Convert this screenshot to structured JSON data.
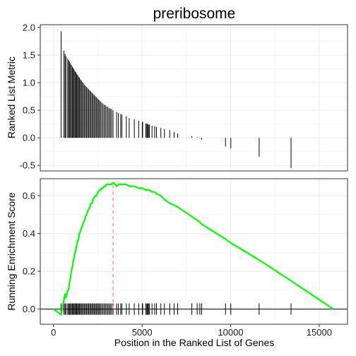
{
  "chart_data": {
    "type": "line",
    "title": "preribosome",
    "colors": {
      "running_score": "#00ff00",
      "peak_marker": "#ff6666",
      "hits": "#000000"
    },
    "top_panel": {
      "type": "bar",
      "ylabel": "Ranked List Metric",
      "yticks": [
        "2.0",
        "1.5",
        "1.0",
        "0.5",
        "0.0",
        "-0.5"
      ],
      "ylim": [
        -0.6,
        2.05
      ],
      "xlim": [
        -750,
        16600
      ],
      "grid": true,
      "hit_positions": [
        430,
        590,
        650,
        700,
        800,
        850,
        900,
        960,
        1000,
        1060,
        1110,
        1160,
        1210,
        1260,
        1310,
        1360,
        1410,
        1460,
        1520,
        1570,
        1630,
        1690,
        1750,
        1810,
        1870,
        1930,
        1990,
        2050,
        2110,
        2170,
        2230,
        2290,
        2350,
        2410,
        2470,
        2530,
        2590,
        2650,
        2720,
        2790,
        2860,
        2930,
        3000,
        3070,
        3140,
        3210,
        3280,
        3360,
        3560,
        3660,
        3790,
        3860,
        4110,
        4270,
        4560,
        4810,
        5010,
        5030,
        5210,
        5270,
        5310,
        5360,
        5410,
        5560,
        5710,
        5810,
        6060,
        6260,
        6560,
        6810,
        7010,
        7810,
        8110,
        8260,
        8360,
        9710,
        10010,
        11610,
        13410
      ],
      "metric_values": [
        1.93,
        1.58,
        1.52,
        1.48,
        1.44,
        1.41,
        1.38,
        1.35,
        1.32,
        1.29,
        1.27,
        1.24,
        1.21,
        1.19,
        1.16,
        1.14,
        1.11,
        1.09,
        1.06,
        1.04,
        1.01,
        0.99,
        0.96,
        0.94,
        0.92,
        0.9,
        0.88,
        0.86,
        0.84,
        0.82,
        0.8,
        0.78,
        0.76,
        0.74,
        0.72,
        0.7,
        0.68,
        0.66,
        0.64,
        0.62,
        0.6,
        0.59,
        0.57,
        0.56,
        0.54,
        0.53,
        0.52,
        0.5,
        0.47,
        0.45,
        0.43,
        0.42,
        0.39,
        0.36,
        0.34,
        0.31,
        0.29,
        0.29,
        0.26,
        0.26,
        0.25,
        0.24,
        0.24,
        0.22,
        0.21,
        0.2,
        0.18,
        0.16,
        0.14,
        0.11,
        0.08,
        0.03,
        0.01,
        -0.01,
        -0.03,
        -0.16,
        -0.19,
        -0.34,
        -0.55
      ]
    },
    "bottom_panel": {
      "type": "line",
      "xlabel": "Position in the Ranked List of Genes",
      "ylabel": "Running Enrichment Score",
      "xticks": [
        "0",
        "5000",
        "10000",
        "15000"
      ],
      "xtick_values": [
        0,
        5000,
        10000,
        15000
      ],
      "yticks": [
        "0.6",
        "0.4",
        "0.2",
        "0.0"
      ],
      "ytick_values": [
        0.6,
        0.4,
        0.2,
        0.0
      ],
      "xlim": [
        -750,
        16600
      ],
      "ylim": [
        -0.08,
        0.69
      ],
      "grid": true,
      "max_es_position": 3360,
      "running_score": {
        "x": [
          0,
          430,
          590,
          650,
          700,
          800,
          850,
          900,
          960,
          1000,
          1060,
          1110,
          1160,
          1210,
          1260,
          1310,
          1360,
          1410,
          1460,
          1520,
          1570,
          1630,
          1690,
          1750,
          1810,
          1870,
          1930,
          1990,
          2050,
          2110,
          2170,
          2230,
          2290,
          2350,
          2410,
          2470,
          2530,
          2590,
          2650,
          2720,
          2790,
          2860,
          2930,
          3000,
          3070,
          3140,
          3210,
          3280,
          3360,
          3560,
          3660,
          3790,
          3860,
          4110,
          4270,
          4560,
          4810,
          5010,
          5030,
          5210,
          5270,
          5310,
          5360,
          5410,
          5560,
          5710,
          5810,
          6060,
          6260,
          6560,
          6810,
          7010,
          7810,
          8110,
          8260,
          8360,
          9710,
          10010,
          11610,
          13410,
          15800
        ],
        "y": [
          0.0,
          -0.03,
          0.05,
          0.08,
          0.06,
          0.1,
          0.1,
          0.14,
          0.17,
          0.2,
          0.22,
          0.25,
          0.27,
          0.3,
          0.31,
          0.34,
          0.36,
          0.37,
          0.4,
          0.41,
          0.43,
          0.44,
          0.46,
          0.47,
          0.49,
          0.5,
          0.52,
          0.53,
          0.54,
          0.56,
          0.56,
          0.58,
          0.59,
          0.6,
          0.6,
          0.61,
          0.62,
          0.63,
          0.63,
          0.64,
          0.64,
          0.65,
          0.65,
          0.66,
          0.66,
          0.66,
          0.66,
          0.66,
          0.67,
          0.65,
          0.66,
          0.66,
          0.66,
          0.66,
          0.65,
          0.65,
          0.64,
          0.64,
          0.64,
          0.63,
          0.63,
          0.63,
          0.63,
          0.63,
          0.62,
          0.62,
          0.61,
          0.6,
          0.58,
          0.56,
          0.55,
          0.54,
          0.49,
          0.47,
          0.46,
          0.45,
          0.37,
          0.35,
          0.26,
          0.15,
          0.0
        ]
      }
    }
  }
}
